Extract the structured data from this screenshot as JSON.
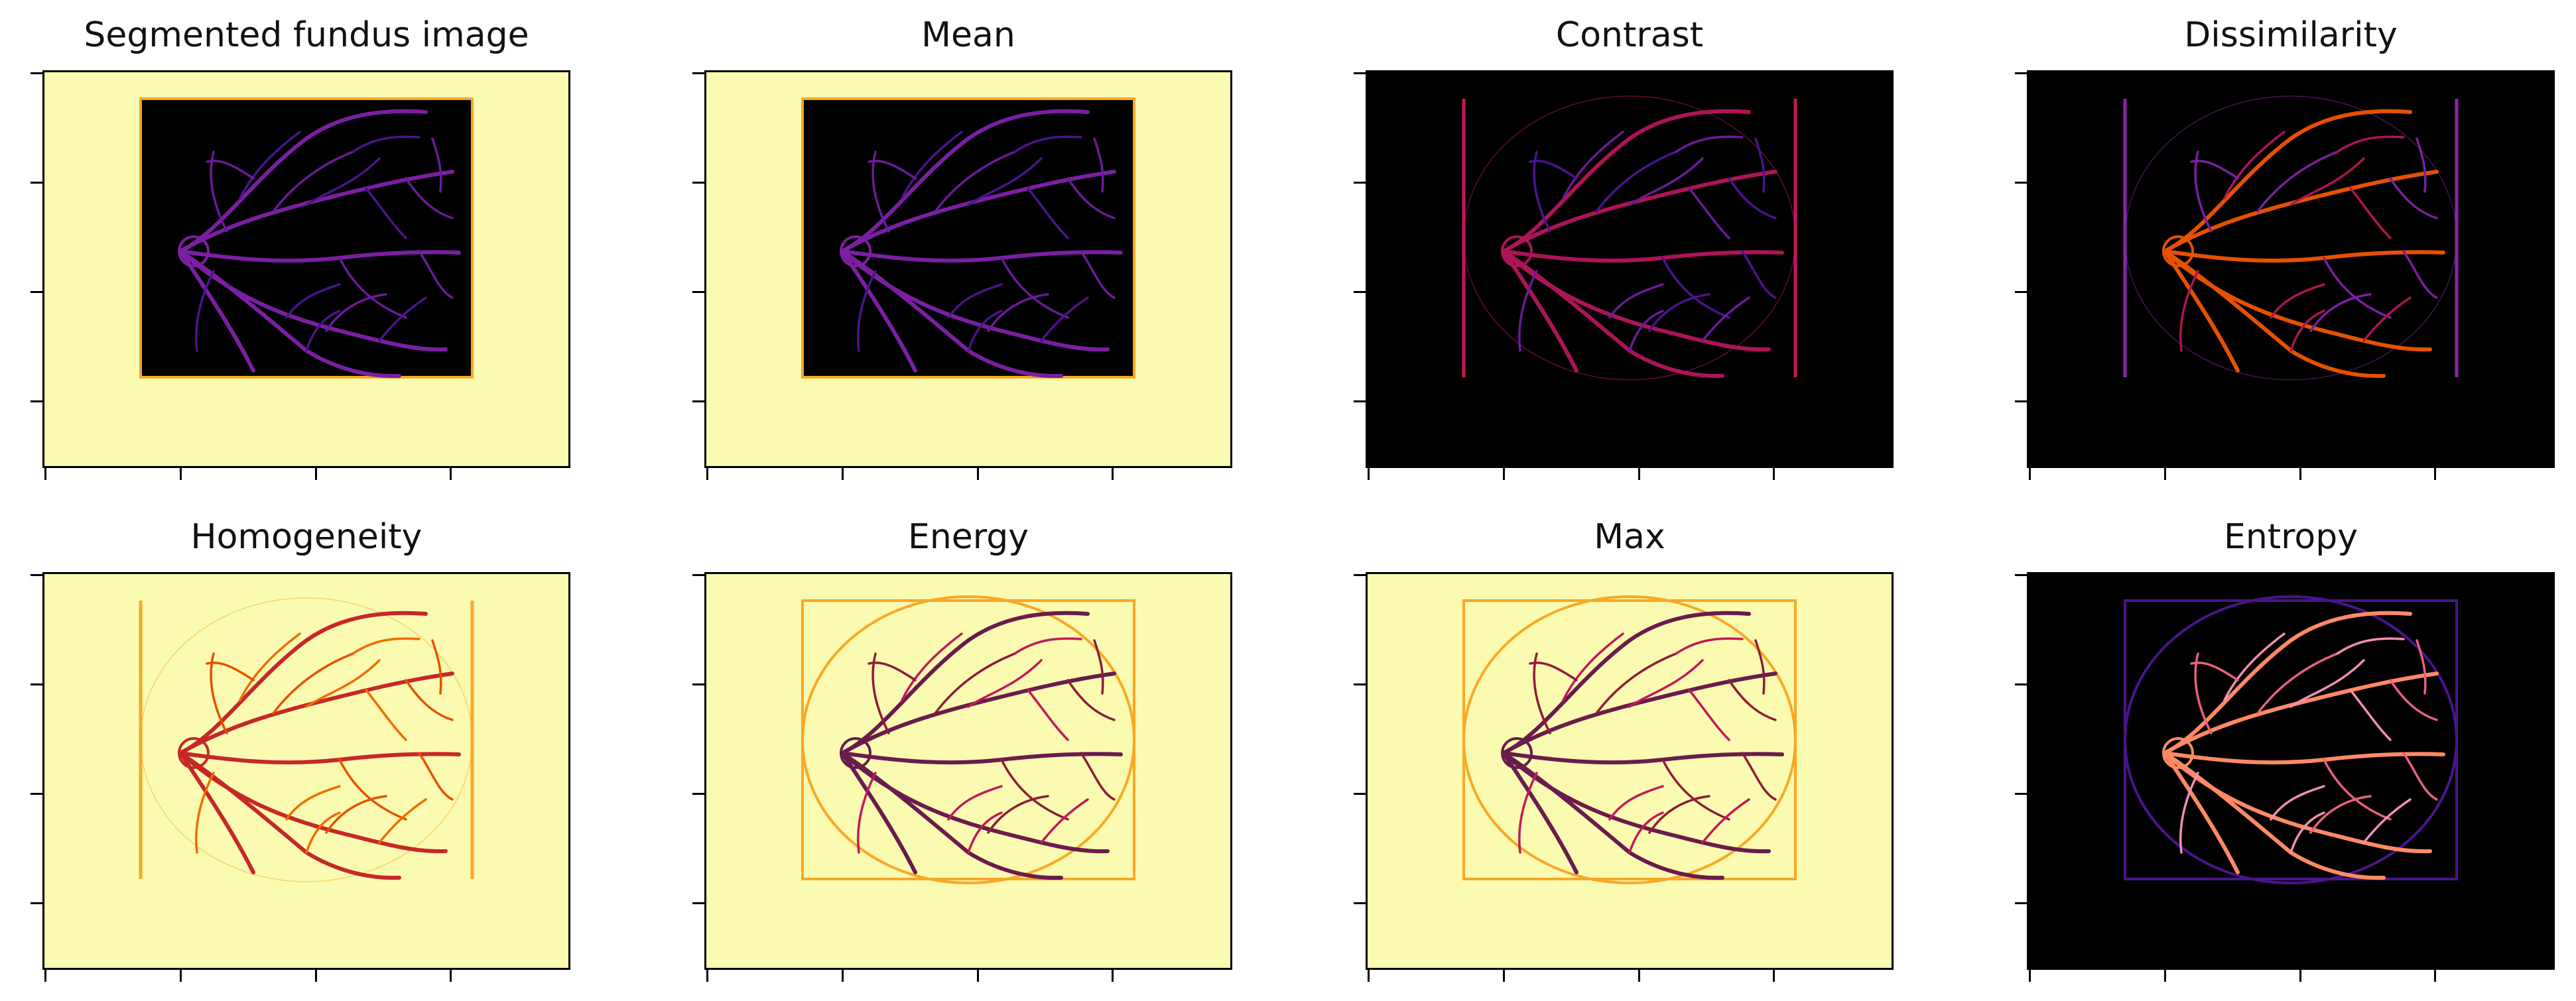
{
  "figure": {
    "panels": [
      {
        "title": "Segmented fundus image",
        "bg": "#fafab0",
        "roi_fill": "#000000",
        "roi_edge": "#f5a623",
        "vessel": "#6a1b9a",
        "vessel2": "#4a148c",
        "thick": "#7b1fa2",
        "style": "masked"
      },
      {
        "title": "Mean",
        "bg": "#fafab0",
        "roi_fill": "#000000",
        "roi_edge": "#f5a623",
        "vessel": "#6a1b9a",
        "vessel2": "#4a148c",
        "thick": "#7b1fa2",
        "style": "masked"
      },
      {
        "title": "Contrast",
        "bg": "#000000",
        "roi_fill": "#000000",
        "roi_edge": "#c2185b",
        "vessel": "#4a148c",
        "vessel2": "#6a1b9a",
        "thick": "#ad1457",
        "style": "bars"
      },
      {
        "title": "Dissimilarity",
        "bg": "#000000",
        "roi_fill": "#000000",
        "roi_edge": "#8e24aa",
        "vessel": "#7b1fa2",
        "vessel2": "#ad1457",
        "thick": "#e65100",
        "style": "bars"
      },
      {
        "title": "Homogeneity",
        "bg": "#fafab0",
        "roi_fill": "#fafab0",
        "roi_edge": "#f9a825",
        "vessel": "#e65100",
        "vessel2": "#ef6c00",
        "thick": "#c62828",
        "style": "bars"
      },
      {
        "title": "Energy",
        "bg": "#fafab0",
        "roi_fill": "#fafab0",
        "roi_edge": "#f9a825",
        "vessel": "#8e1b3a",
        "vessel2": "#c2185b",
        "thick": "#6a1b4d",
        "style": "box"
      },
      {
        "title": "Max",
        "bg": "#fafab0",
        "roi_fill": "#fafab0",
        "roi_edge": "#f9a825",
        "vessel": "#8e1b3a",
        "vessel2": "#c2185b",
        "thick": "#6a1b4d",
        "style": "box"
      },
      {
        "title": "Entropy",
        "bg": "#000000",
        "roi_fill": "#000000",
        "roi_edge": "#4a148c",
        "vessel": "#e8627c",
        "vessel2": "#f48fb1",
        "thick": "#ff8a65",
        "style": "box"
      }
    ]
  }
}
